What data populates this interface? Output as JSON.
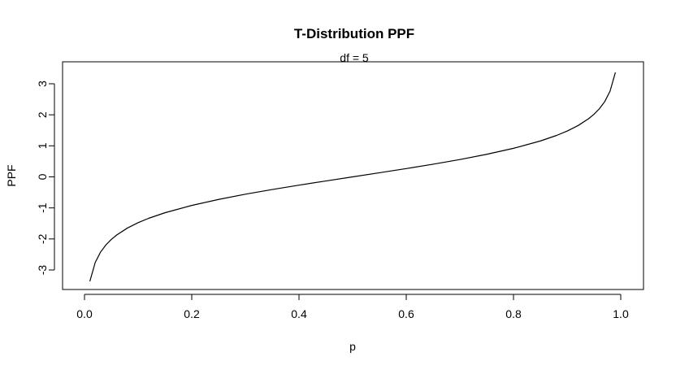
{
  "chart_data": {
    "type": "line",
    "title": "T-Distribution PPF",
    "subtitle": "df = 5",
    "xlabel": "p",
    "ylabel": "PPF",
    "xlim": [
      0,
      1
    ],
    "ylim": [
      -3.5,
      3.5
    ],
    "x_ticks": [
      0.0,
      0.2,
      0.4,
      0.6,
      0.8,
      1.0
    ],
    "x_tick_labels": [
      "0.0",
      "0.2",
      "0.4",
      "0.6",
      "0.8",
      "1.0"
    ],
    "y_ticks": [
      -3,
      -2,
      -1,
      0,
      1,
      2,
      3
    ],
    "y_tick_labels": [
      "-3",
      "-2",
      "-1",
      "0",
      "1",
      "2",
      "3"
    ],
    "grid": false,
    "series": [
      {
        "color": "#000000",
        "x": [
          0.01,
          0.02,
          0.03,
          0.04,
          0.05,
          0.06,
          0.08,
          0.1,
          0.12,
          0.15,
          0.2,
          0.25,
          0.3,
          0.35,
          0.4,
          0.45,
          0.5,
          0.55,
          0.6,
          0.65,
          0.7,
          0.75,
          0.8,
          0.85,
          0.88,
          0.9,
          0.92,
          0.94,
          0.95,
          0.96,
          0.97,
          0.98,
          0.99
        ],
        "y": [
          -3.365,
          -2.757,
          -2.422,
          -2.191,
          -2.015,
          -1.873,
          -1.649,
          -1.476,
          -1.333,
          -1.156,
          -0.92,
          -0.727,
          -0.559,
          -0.408,
          -0.267,
          -0.132,
          0.0,
          0.132,
          0.267,
          0.408,
          0.559,
          0.727,
          0.92,
          1.156,
          1.333,
          1.476,
          1.649,
          1.873,
          2.015,
          2.191,
          2.422,
          2.757,
          3.365
        ]
      }
    ]
  }
}
